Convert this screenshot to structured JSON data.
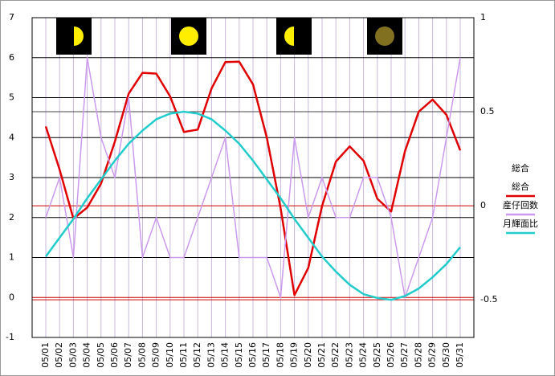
{
  "chart_data": {
    "type": "line",
    "categories": [
      "05/01",
      "05/02",
      "05/03",
      "05/04",
      "05/05",
      "05/06",
      "05/07",
      "05/08",
      "05/09",
      "05/10",
      "05/11",
      "05/12",
      "05/13",
      "05/14",
      "05/15",
      "05/16",
      "05/17",
      "05/18",
      "05/19",
      "05/20",
      "05/21",
      "05/22",
      "05/23",
      "05/24",
      "05/25",
      "05/26",
      "05/27",
      "05/28",
      "05/29",
      "05/30",
      "05/31"
    ],
    "series": [
      {
        "name": "総合",
        "color": "#e00000",
        "values": [
          4.28,
          3.2,
          1.97,
          2.25,
          2.85,
          3.9,
          5.1,
          5.62,
          5.6,
          5.03,
          4.14,
          4.2,
          5.23,
          5.89,
          5.9,
          5.33,
          4.0,
          2.23,
          0.06,
          0.74,
          2.29,
          3.4,
          3.78,
          3.42,
          2.47,
          2.15,
          3.66,
          4.65,
          4.95,
          4.57,
          3.68
        ]
      },
      {
        "name": "産仔回数",
        "color": "#cc99ee",
        "values": [
          2,
          3,
          1,
          6,
          4,
          3,
          5,
          1,
          2,
          1,
          1,
          2,
          3,
          4,
          1,
          1,
          1,
          0,
          4,
          2,
          3,
          2,
          2,
          3,
          3,
          2,
          0,
          1,
          2,
          4,
          6
        ]
      },
      {
        "name": "月輝面比",
        "color": "#22cccc",
        "axis": "y2",
        "values": [
          -0.27,
          -0.17,
          -0.07,
          0.04,
          0.14,
          0.24,
          0.33,
          0.4,
          0.46,
          0.49,
          0.5,
          0.49,
          0.46,
          0.4,
          0.33,
          0.24,
          0.14,
          0.04,
          -0.07,
          -0.17,
          -0.27,
          -0.35,
          -0.42,
          -0.47,
          -0.49,
          -0.5,
          -0.48,
          -0.44,
          -0.38,
          -0.31,
          -0.22
        ]
      }
    ],
    "legend_title": "総合",
    "ylim": [
      -1,
      7
    ],
    "yticks": [
      -1,
      0,
      1,
      2,
      3,
      4,
      5,
      6,
      7
    ],
    "y2lim": [
      -0.7,
      1
    ],
    "y2ticks": [
      -0.5,
      0,
      0.5,
      1
    ],
    "grid": true
  }
}
